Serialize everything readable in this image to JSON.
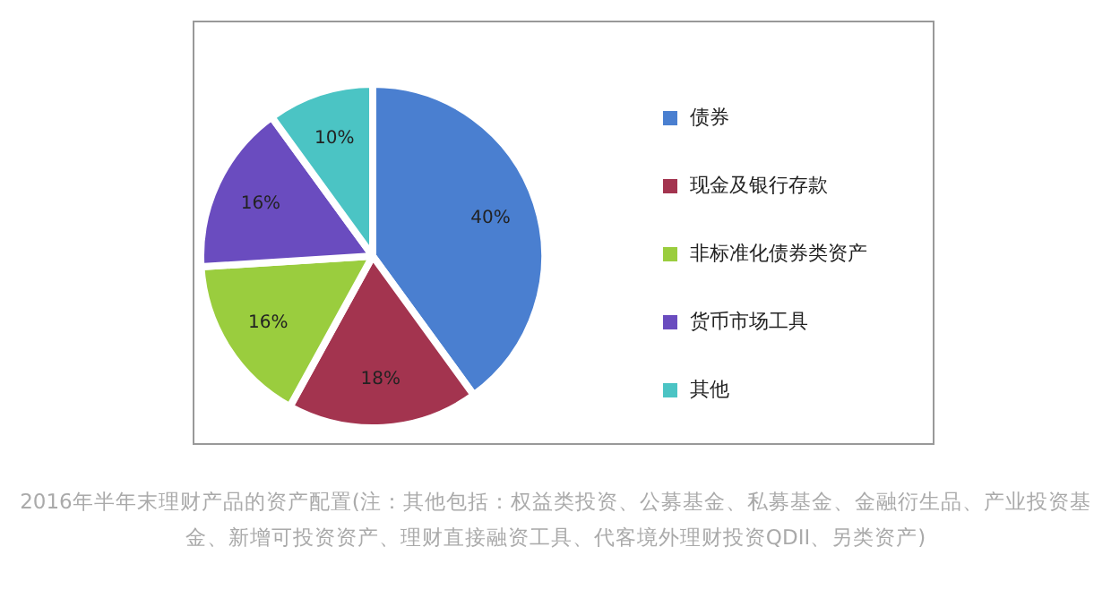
{
  "chart_data": {
    "type": "pie",
    "categories": [
      "债券",
      "现金及银行存款",
      "非标准化债券类资产",
      "货币市场工具",
      "其他"
    ],
    "values": [
      40,
      18,
      16,
      16,
      10
    ],
    "colors": [
      "#4a7fd0",
      "#a3344f",
      "#9acd3e",
      "#6a4cbf",
      "#4bc4c4"
    ],
    "value_labels": [
      "40%",
      "18%",
      "16%",
      "16%",
      "10%"
    ],
    "legend": "right",
    "annotations": [
      "2016年半年末理财产品的资产配置(注：其他包括：权益类投资、公募基金、私募基金、金融衍生品、产业投资基金、新增可投资资产、理财直接融资工具、代客境外理财投资QDII、另类资产)"
    ]
  }
}
